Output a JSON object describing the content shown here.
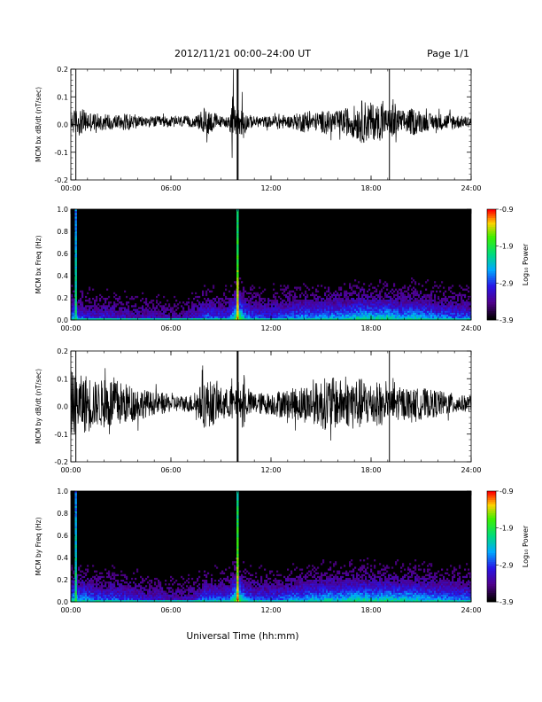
{
  "header": {
    "title": "2012/11/21  00:00–24:00 UT",
    "page": "Page 1/1"
  },
  "x_axis_title": "Universal Time (hh:mm)",
  "x_tick_labels": [
    "00:00",
    "06:00",
    "12:00",
    "18:00",
    "24:00"
  ],
  "colorbar": {
    "title": "Log₁₀ Power",
    "ticks": [
      "-0.9",
      "-1.9",
      "-2.9",
      "-3.9"
    ]
  },
  "chart_data": [
    {
      "type": "line",
      "ylabel": "MCM bx dB/dt (nT/sec)",
      "xlim": [
        0,
        24
      ],
      "ylim": [
        -0.2,
        0.2
      ],
      "y_ticks": [
        "0.2",
        "0.1",
        "0.0",
        "-0.1",
        "-0.2"
      ],
      "x": [
        0,
        0.5,
        1,
        1.5,
        2,
        2.5,
        3,
        3.5,
        4,
        4.5,
        5,
        5.5,
        6,
        6.5,
        7,
        7.5,
        8,
        8.5,
        9,
        9.5,
        10,
        10.5,
        11,
        11.5,
        12,
        12.5,
        13,
        13.5,
        14,
        14.5,
        15,
        15.5,
        16,
        16.5,
        17,
        17.5,
        18,
        18.5,
        19,
        19.5,
        20,
        20.5,
        21,
        21.5,
        22,
        22.5,
        23,
        23.5,
        24
      ],
      "amplitude": [
        0.04,
        0.05,
        0.04,
        0.03,
        0.03,
        0.03,
        0.03,
        0.03,
        0.02,
        0.02,
        0.02,
        0.02,
        0.02,
        0.02,
        0.02,
        0.02,
        0.05,
        0.04,
        0.02,
        0.02,
        0.2,
        0.03,
        0.02,
        0.02,
        0.02,
        0.03,
        0.02,
        0.03,
        0.04,
        0.03,
        0.04,
        0.04,
        0.04,
        0.05,
        0.06,
        0.08,
        0.07,
        0.06,
        0.2,
        0.05,
        0.04,
        0.05,
        0.04,
        0.03,
        0.03,
        0.03,
        0.03,
        0.02,
        0.02
      ],
      "spikes": [
        {
          "x": 0.3,
          "min": -0.2,
          "max": 0.2
        },
        {
          "x": 10.0,
          "min": -0.2,
          "max": 0.2
        },
        {
          "x": 19.1,
          "min": -0.2,
          "max": 0.2
        }
      ]
    },
    {
      "type": "heatmap",
      "ylabel": "MCM bx Freq (Hz)",
      "xlim": [
        0,
        24
      ],
      "ylim": [
        0,
        1.0
      ],
      "y_ticks": [
        "1.0",
        "0.8",
        "0.6",
        "0.4",
        "0.2",
        "0.0"
      ],
      "colorbar_range": [
        -3.9,
        -0.9
      ],
      "x_hours": [
        0,
        0.5,
        1,
        1.5,
        2,
        2.5,
        3,
        3.5,
        4,
        4.5,
        5,
        5.5,
        6,
        6.5,
        7,
        7.5,
        8,
        8.5,
        9,
        9.5,
        10,
        10.5,
        11,
        11.5,
        12,
        12.5,
        13,
        13.5,
        14,
        14.5,
        15,
        15.5,
        16,
        16.5,
        17,
        17.5,
        18,
        18.5,
        19,
        19.5,
        20,
        20.5,
        21,
        21.5,
        22,
        22.5,
        23,
        23.5,
        24
      ],
      "activity": [
        0.6,
        0.5,
        0.4,
        0.35,
        0.4,
        0.35,
        0.35,
        0.3,
        0.3,
        0.3,
        0.3,
        0.3,
        0.25,
        0.25,
        0.3,
        0.35,
        0.5,
        0.5,
        0.45,
        0.45,
        1.0,
        0.55,
        0.5,
        0.45,
        0.45,
        0.5,
        0.5,
        0.55,
        0.6,
        0.55,
        0.6,
        0.6,
        0.6,
        0.65,
        0.7,
        0.75,
        0.7,
        0.7,
        0.75,
        0.65,
        0.65,
        0.7,
        0.65,
        0.6,
        0.55,
        0.55,
        0.5,
        0.5,
        0.5
      ],
      "vertical_streaks": [
        {
          "x": 0.3,
          "level": 0.7
        },
        {
          "x": 10.0,
          "level": 1.0
        }
      ]
    },
    {
      "type": "line",
      "ylabel": "MCM by dB/dt (nT/sec)",
      "xlim": [
        0,
        24
      ],
      "ylim": [
        -0.2,
        0.2
      ],
      "y_ticks": [
        "0.2",
        "0.1",
        "0.0",
        "-0.1",
        "-0.2"
      ],
      "x": [
        0,
        0.5,
        1,
        1.5,
        2,
        2.5,
        3,
        3.5,
        4,
        4.5,
        5,
        5.5,
        6,
        6.5,
        7,
        7.5,
        8,
        8.5,
        9,
        9.5,
        10,
        10.5,
        11,
        11.5,
        12,
        12.5,
        13,
        13.5,
        14,
        14.5,
        15,
        15.5,
        16,
        16.5,
        17,
        17.5,
        18,
        18.5,
        19,
        19.5,
        20,
        20.5,
        21,
        21.5,
        22,
        22.5,
        23,
        23.5,
        24
      ],
      "amplitude": [
        0.12,
        0.1,
        0.11,
        0.08,
        0.09,
        0.1,
        0.08,
        0.07,
        0.06,
        0.05,
        0.04,
        0.04,
        0.03,
        0.03,
        0.03,
        0.04,
        0.09,
        0.08,
        0.06,
        0.05,
        0.2,
        0.05,
        0.04,
        0.04,
        0.04,
        0.05,
        0.05,
        0.06,
        0.07,
        0.07,
        0.09,
        0.1,
        0.09,
        0.08,
        0.1,
        0.09,
        0.08,
        0.08,
        0.2,
        0.06,
        0.06,
        0.05,
        0.06,
        0.05,
        0.05,
        0.04,
        0.04,
        0.03,
        0.03
      ],
      "spikes": [
        {
          "x": 0.3,
          "min": -0.2,
          "max": 0.2
        },
        {
          "x": 10.0,
          "min": -0.2,
          "max": 0.2
        },
        {
          "x": 19.1,
          "min": -0.2,
          "max": 0.2
        }
      ]
    },
    {
      "type": "heatmap",
      "ylabel": "MCM by Freq (Hz)",
      "xlim": [
        0,
        24
      ],
      "ylim": [
        0,
        1.0
      ],
      "y_ticks": [
        "1.0",
        "0.8",
        "0.6",
        "0.4",
        "0.2",
        "0.0"
      ],
      "colorbar_range": [
        -3.9,
        -0.9
      ],
      "x_hours": [
        0,
        0.5,
        1,
        1.5,
        2,
        2.5,
        3,
        3.5,
        4,
        4.5,
        5,
        5.5,
        6,
        6.5,
        7,
        7.5,
        8,
        8.5,
        9,
        9.5,
        10,
        10.5,
        11,
        11.5,
        12,
        12.5,
        13,
        13.5,
        14,
        14.5,
        15,
        15.5,
        16,
        16.5,
        17,
        17.5,
        18,
        18.5,
        19,
        19.5,
        20,
        20.5,
        21,
        21.5,
        22,
        22.5,
        23,
        23.5,
        24
      ],
      "activity": [
        0.7,
        0.6,
        0.6,
        0.5,
        0.5,
        0.5,
        0.45,
        0.45,
        0.4,
        0.35,
        0.35,
        0.35,
        0.3,
        0.3,
        0.3,
        0.35,
        0.55,
        0.5,
        0.5,
        0.5,
        1.0,
        0.55,
        0.5,
        0.5,
        0.5,
        0.5,
        0.55,
        0.6,
        0.6,
        0.65,
        0.65,
        0.7,
        0.65,
        0.7,
        0.75,
        0.75,
        0.7,
        0.7,
        0.75,
        0.7,
        0.7,
        0.7,
        0.65,
        0.65,
        0.6,
        0.6,
        0.55,
        0.55,
        0.55
      ],
      "vertical_streaks": [
        {
          "x": 0.3,
          "level": 0.7
        },
        {
          "x": 10.0,
          "level": 1.0
        }
      ]
    }
  ]
}
